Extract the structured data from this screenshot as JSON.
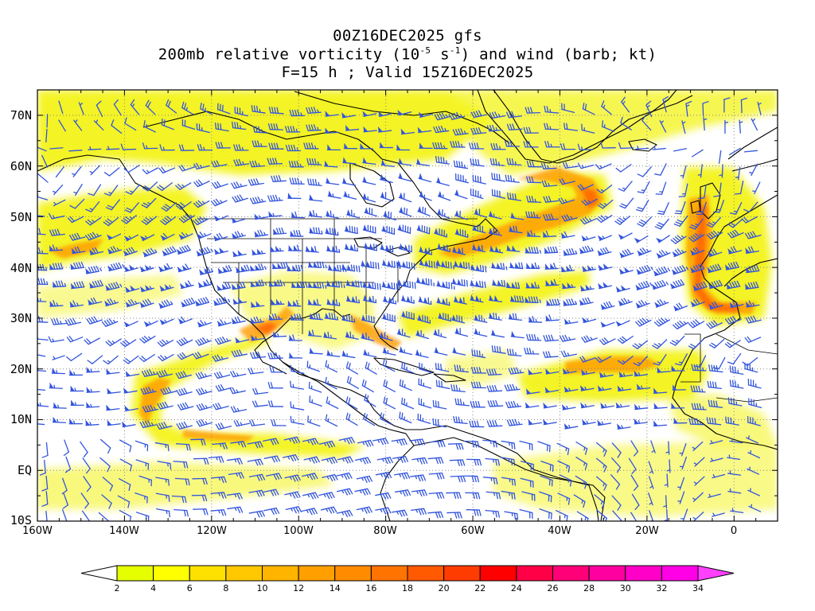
{
  "title": {
    "line1": "00Z16DEC2025 gfs",
    "line2_pre": "200mb relative vorticity (10",
    "line2_exp1": "-5",
    "line2_mid": " s",
    "line2_exp2": "-1",
    "line2_post": ") and wind (barb; kt)",
    "line3": "F=15 h ; Valid 15Z16DEC2025"
  },
  "map": {
    "projection": "cylindrical equidistant",
    "lon_range": [
      -160,
      10
    ],
    "lat_range": [
      -10,
      75
    ],
    "lat_labels": [
      "70N",
      "60N",
      "50N",
      "40N",
      "30N",
      "20N",
      "10N",
      "EQ",
      "10S"
    ],
    "lon_labels": [
      "160W",
      "140W",
      "120W",
      "100W",
      "80W",
      "60W",
      "40W",
      "20W",
      "0"
    ],
    "grid_lines": "dotted",
    "barb_color": "#3355dd",
    "coast_color": "#000000"
  },
  "colorbar": {
    "labels": [
      "2",
      "4",
      "6",
      "8",
      "10",
      "12",
      "14",
      "16",
      "18",
      "20",
      "22",
      "24",
      "26",
      "28",
      "30",
      "32",
      "34"
    ],
    "colors": [
      "#e6ff00",
      "#ffff00",
      "#ffe100",
      "#ffc800",
      "#ffb400",
      "#ffa000",
      "#ff8c00",
      "#ff7300",
      "#ff5a00",
      "#ff3c00",
      "#ff0000",
      "#ff0046",
      "#ff0078",
      "#ff00a0",
      "#ff00c8",
      "#ff00e6",
      "#f000ff"
    ],
    "below_color": "#ffffff",
    "above_color": "#ff40ff"
  }
}
